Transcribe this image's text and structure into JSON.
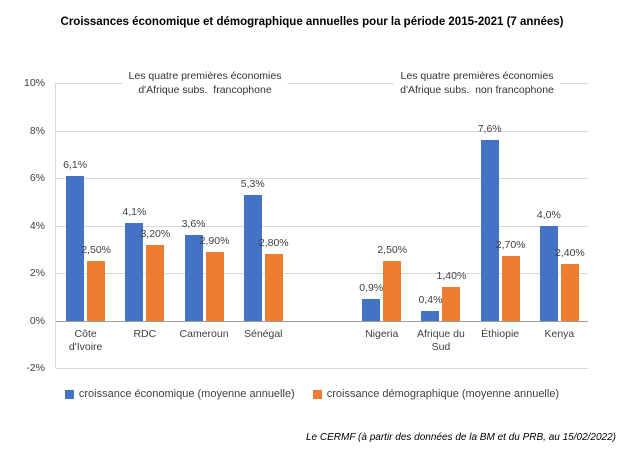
{
  "title": "Croissances économique et démographique annuelles pour la période 2015-2021  (7 années)",
  "source_note": "Le CERMF (à partir des données de la BM et du PRB, au 15/02/2022)",
  "colors": {
    "economic": "#4472C4",
    "demographic": "#ED7D31",
    "gridline": "#D9D9D9",
    "zero_axis": "#9E9E9E",
    "text": "#404040"
  },
  "legend": [
    {
      "id": "economic",
      "label": "croissance économique (moyenne annuelle)",
      "color": "#4472C4"
    },
    {
      "id": "demographic",
      "label": "croissance démographique (moyenne annuelle)",
      "color": "#ED7D31"
    }
  ],
  "chart_data": {
    "type": "bar",
    "title": "Croissances économique et démographique annuelles pour la période 2015-2021 (7 années)",
    "grid": true,
    "legend_position": "bottom",
    "y_axis": {
      "unit": "%",
      "min": -2,
      "max": 10,
      "step": 2,
      "ticks": [
        {
          "value": 10,
          "label": "10%"
        },
        {
          "value": 8,
          "label": "8%"
        },
        {
          "value": 6,
          "label": "6%"
        },
        {
          "value": 4,
          "label": "4%"
        },
        {
          "value": 2,
          "label": "2%"
        },
        {
          "value": 0,
          "label": "0%"
        },
        {
          "value": -2,
          "label": "-2%"
        }
      ]
    },
    "series_names": [
      "croissance économique (moyenne annuelle)",
      "croissance démographique (moyenne annuelle)"
    ],
    "groups": [
      {
        "annotation_lines": [
          "Les quatre premières économies",
          "d'Afrique subs.  francophone"
        ],
        "categories": [
          "Côte d'Ivoire",
          "RDC",
          "Cameroun",
          "Sénégal"
        ],
        "series": [
          {
            "name": "croissance économique (moyenne annuelle)",
            "values": [
              6.1,
              4.1,
              3.6,
              5.3
            ],
            "labels": [
              "6,1%",
              "4,1%",
              "3,6%",
              "5,3%"
            ]
          },
          {
            "name": "croissance démographique (moyenne annuelle)",
            "values": [
              2.5,
              3.2,
              2.9,
              2.8
            ],
            "labels": [
              "2,50%",
              "3,20%",
              "2,90%",
              "2,80%"
            ]
          }
        ]
      },
      {
        "annotation_lines": [
          "Les quatre premières économies",
          "d'Afrique subs.  non francophone"
        ],
        "categories": [
          "Nigeria",
          "Afrique du Sud",
          "Éthiopie",
          "Kenya"
        ],
        "series": [
          {
            "name": "croissance économique (moyenne annuelle)",
            "values": [
              0.9,
              0.4,
              7.6,
              4.0
            ],
            "labels": [
              "0,9%",
              "0,4%",
              "7,6%",
              "4,0%"
            ]
          },
          {
            "name": "croissance démographique (moyenne annuelle)",
            "values": [
              2.5,
              1.4,
              2.7,
              2.4
            ],
            "labels": [
              "2,50%",
              "1,40%",
              "2,70%",
              "2,40%"
            ]
          }
        ]
      }
    ]
  }
}
